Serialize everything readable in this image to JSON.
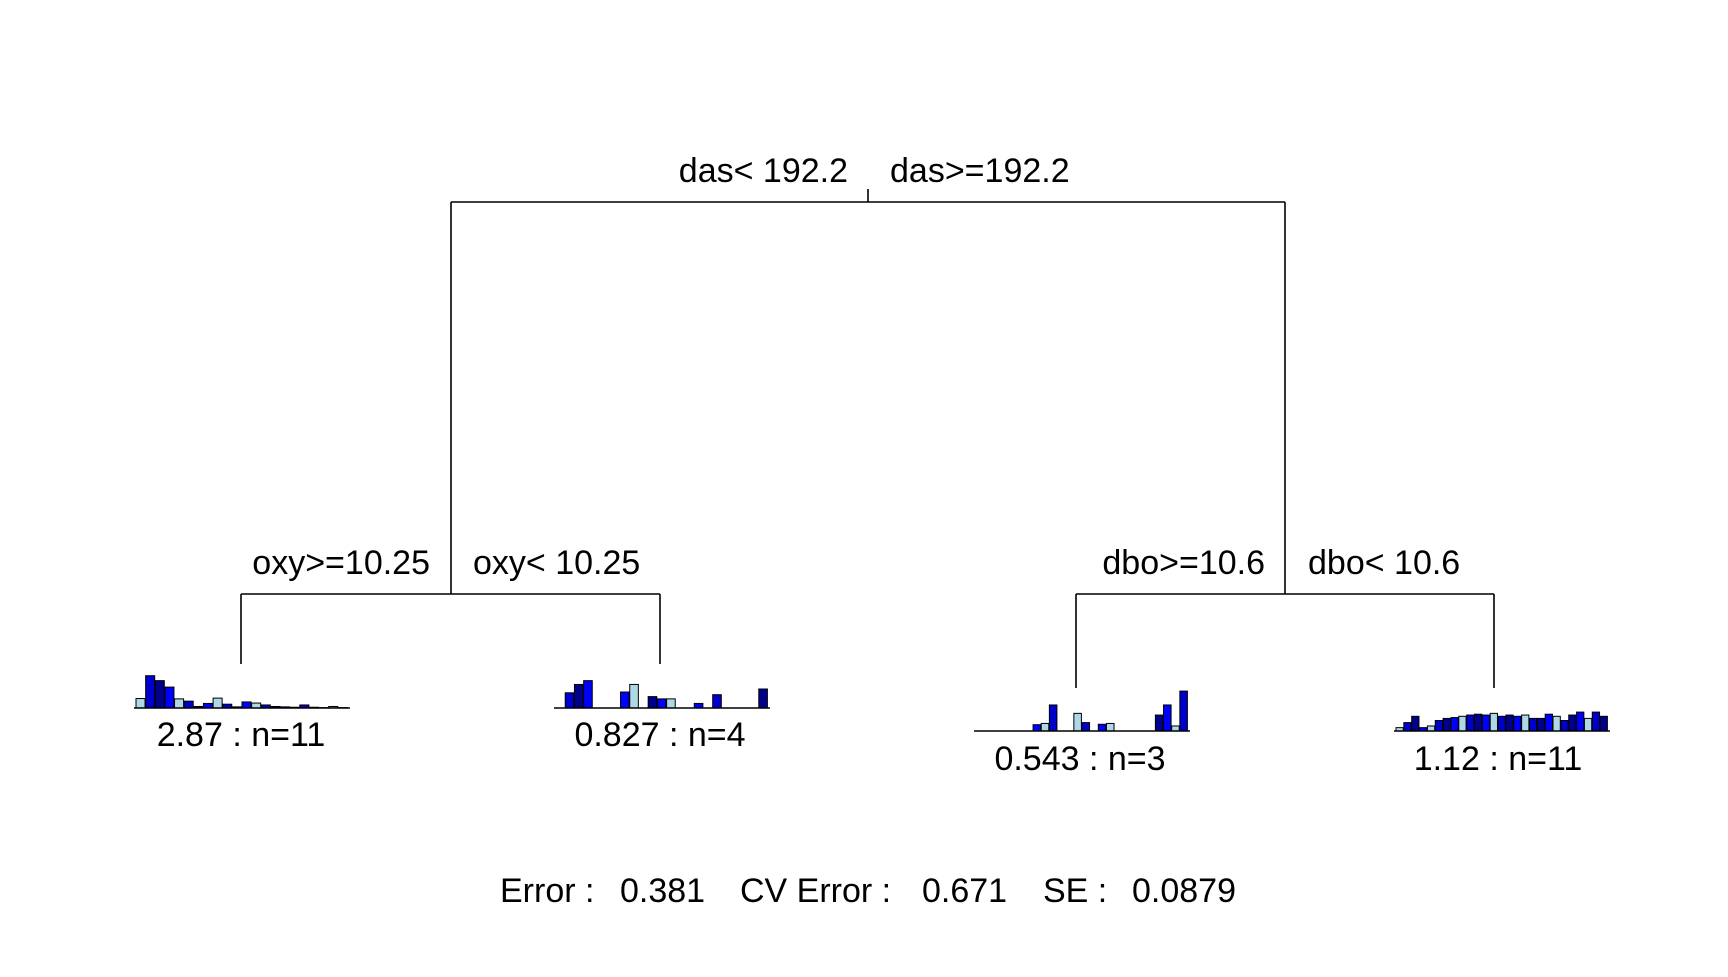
{
  "tree": {
    "root": {
      "split_left_label": "das< 192.2",
      "split_right_label": "das>=192.2"
    },
    "left": {
      "split_left_label": "oxy>=10.25",
      "split_right_label": "oxy< 10.25"
    },
    "right": {
      "split_left_label": "dbo>=10.6",
      "split_right_label": "dbo< 10.6"
    },
    "leaves": [
      {
        "label": "2.87 : n=11",
        "bars": [
          0.25,
          0.85,
          0.72,
          0.55,
          0.24,
          0.18,
          0.04,
          0.12,
          0.26,
          0.1,
          0.03,
          0.16,
          0.13,
          0.08,
          0.04,
          0.03,
          0.02,
          0.08,
          0.02,
          0.01,
          0.04,
          0.01
        ]
      },
      {
        "label": "0.827 : n=4",
        "bars": [
          0.0,
          0.4,
          0.62,
          0.72,
          0.0,
          0.0,
          0.0,
          0.42,
          0.62,
          0.0,
          0.3,
          0.24,
          0.24,
          0.0,
          0.0,
          0.12,
          0.0,
          0.35,
          0.0,
          0.0,
          0.0,
          0.0,
          0.5
        ]
      },
      {
        "label": "0.543 : n=3",
        "bars": [
          0.0,
          0.0,
          0.0,
          0.0,
          0.0,
          0.0,
          0.0,
          0.15,
          0.18,
          0.62,
          0.0,
          0.0,
          0.42,
          0.2,
          0.0,
          0.16,
          0.18,
          0.0,
          0.0,
          0.0,
          0.0,
          0.0,
          0.38,
          0.62,
          0.12,
          0.95
        ]
      },
      {
        "label": "1.12 : n=11",
        "bars": [
          0.08,
          0.2,
          0.35,
          0.08,
          0.12,
          0.25,
          0.3,
          0.32,
          0.35,
          0.38,
          0.4,
          0.38,
          0.42,
          0.35,
          0.38,
          0.35,
          0.38,
          0.3,
          0.3,
          0.4,
          0.35,
          0.25,
          0.38,
          0.45,
          0.3,
          0.45,
          0.35
        ]
      }
    ],
    "palette": [
      "#add8e6",
      "#0000cd",
      "#00008b",
      "#0000ff"
    ],
    "footer": {
      "error_label": "Error :",
      "error_value": "0.381",
      "cv_error_label": "CV Error :",
      "cv_error_value": "0.671",
      "se_label": "SE :",
      "se_value": "0.0879"
    }
  }
}
